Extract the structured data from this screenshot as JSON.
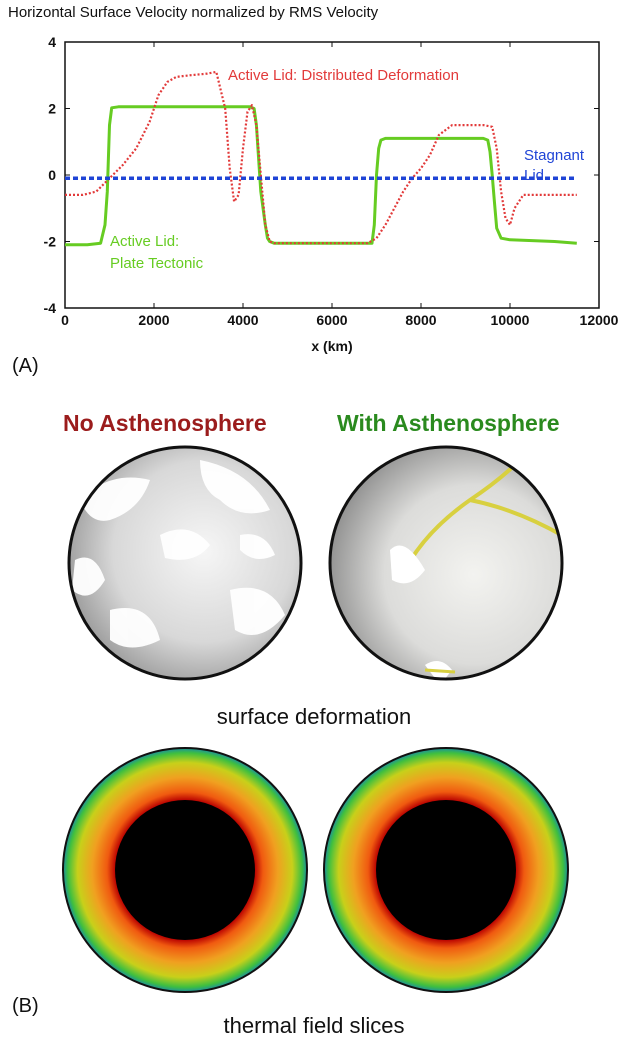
{
  "chart_data": {
    "type": "line",
    "title": "Horizontal Surface Velocity normalized by RMS Velocity",
    "xlabel": "x  (km)",
    "ylabel": "",
    "xlim": [
      0,
      12000
    ],
    "ylim": [
      -4,
      4
    ],
    "xticks": [
      "0",
      "2000",
      "4000",
      "6000",
      "8000",
      "10000",
      "12000"
    ],
    "yticks": [
      "4",
      "2",
      "0",
      "-2",
      "-4"
    ],
    "grid": false,
    "series": [
      {
        "name": "Active Lid: Plate Tectonic",
        "label_lines": [
          "Active Lid:",
          "Plate Tectonic"
        ],
        "color": "#66cc22",
        "style": "solid",
        "x": [
          0,
          500,
          800,
          900,
          950,
          1000,
          1050,
          1200,
          2000,
          3000,
          4000,
          4150,
          4250,
          4300,
          4350,
          4400,
          4500,
          4550,
          4600,
          4700,
          5000,
          6000,
          6900,
          6950,
          7000,
          7050,
          7100,
          7200,
          8000,
          9000,
          9400,
          9500,
          9550,
          9600,
          9650,
          9700,
          9800,
          10000,
          11000,
          11500
        ],
        "y": [
          -2.1,
          -2.1,
          -2.05,
          -1.5,
          -0.5,
          1.5,
          2.02,
          2.05,
          2.05,
          2.05,
          2.05,
          2.05,
          2.0,
          1.5,
          0.5,
          -0.5,
          -1.5,
          -1.9,
          -2.0,
          -2.05,
          -2.05,
          -2.05,
          -2.05,
          -1.5,
          0,
          0.8,
          1.05,
          1.1,
          1.1,
          1.1,
          1.1,
          1.05,
          0.7,
          0,
          -0.8,
          -1.6,
          -1.9,
          -1.95,
          -2.0,
          -2.05
        ]
      },
      {
        "name": "Active Lid: Distributed Deformation",
        "color": "#e23a3a",
        "style": "dotted",
        "x": [
          0,
          400,
          700,
          1000,
          1300,
          1600,
          1900,
          2100,
          2300,
          2500,
          2800,
          3200,
          3400,
          3600,
          3700,
          3800,
          3900,
          4000,
          4100,
          4200,
          4300,
          4400,
          4500,
          4600,
          4700,
          4800,
          5000,
          6000,
          6800,
          7000,
          7200,
          7400,
          7600,
          7800,
          8000,
          8200,
          8400,
          8700,
          9000,
          9400,
          9600,
          9700,
          9800,
          9900,
          10000,
          10100,
          10300,
          11000,
          11500
        ],
        "y": [
          -0.6,
          -0.6,
          -0.5,
          -0.1,
          0.3,
          0.8,
          1.6,
          2.4,
          2.8,
          2.95,
          3.0,
          3.05,
          3.1,
          2.0,
          0.2,
          -0.8,
          -0.6,
          0.8,
          1.9,
          2.1,
          1.5,
          0,
          -1.5,
          -2.0,
          -2.05,
          -2.05,
          -2.05,
          -2.05,
          -2.05,
          -1.9,
          -1.5,
          -1.0,
          -0.5,
          -0.1,
          0.2,
          0.6,
          1.2,
          1.5,
          1.5,
          1.5,
          1.45,
          0.8,
          -0.5,
          -1.3,
          -1.5,
          -1.0,
          -0.6,
          -0.6,
          -0.6
        ]
      },
      {
        "name": "Stagnant Lid",
        "label_lines": [
          "Stagnant",
          "Lid"
        ],
        "color": "#1f44d6",
        "style": "dashed",
        "x": [
          0,
          11500
        ],
        "y": [
          -0.1,
          -0.1
        ]
      }
    ]
  },
  "panels": {
    "a_label": "(A)",
    "b_label": "(B)"
  },
  "figure_b": {
    "col_left": "No Asthenosphere",
    "col_right": "With Asthenosphere",
    "col_left_color": "#9b1c1c",
    "col_right_color": "#2a8a1e",
    "caption_surface": "surface deformation",
    "caption_thermal": "thermal field slices"
  }
}
